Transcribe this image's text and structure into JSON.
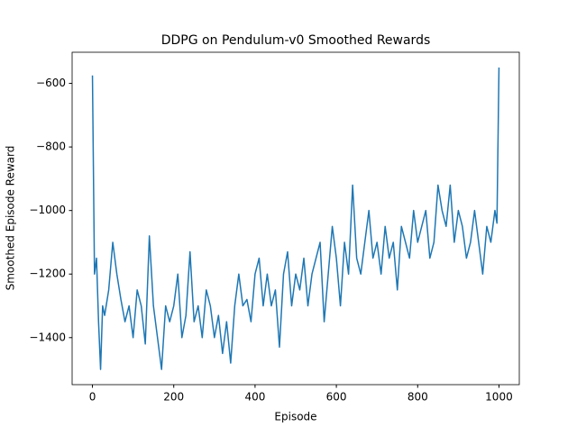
{
  "chart_data": {
    "type": "line",
    "title": "DDPG on Pendulum-v0 Smoothed Rewards",
    "x_label": "Episode",
    "y_label": "Smoothed Episode Reward",
    "series": [
      {
        "color": "#1f77b4",
        "x": [
          0,
          5,
          10,
          15,
          20,
          25,
          30,
          40,
          50,
          60,
          70,
          80,
          90,
          100,
          110,
          120,
          130,
          140,
          150,
          160,
          170,
          180,
          190,
          200,
          210,
          220,
          230,
          240,
          250,
          260,
          270,
          280,
          290,
          300,
          310,
          320,
          330,
          340,
          350,
          360,
          370,
          380,
          390,
          400,
          410,
          420,
          430,
          440,
          450,
          460,
          470,
          480,
          490,
          500,
          510,
          520,
          530,
          540,
          550,
          560,
          570,
          580,
          590,
          600,
          610,
          620,
          630,
          640,
          650,
          660,
          670,
          680,
          690,
          700,
          710,
          720,
          730,
          740,
          750,
          760,
          770,
          780,
          790,
          800,
          810,
          820,
          830,
          840,
          850,
          860,
          870,
          880,
          890,
          900,
          910,
          920,
          930,
          940,
          950,
          960,
          970,
          980,
          990,
          995,
          1000
        ],
        "values": [
          -575,
          -1200,
          -1150,
          -1350,
          -1500,
          -1300,
          -1330,
          -1250,
          -1100,
          -1200,
          -1280,
          -1350,
          -1300,
          -1400,
          -1250,
          -1300,
          -1420,
          -1080,
          -1300,
          -1400,
          -1500,
          -1300,
          -1350,
          -1300,
          -1200,
          -1400,
          -1330,
          -1130,
          -1350,
          -1300,
          -1400,
          -1250,
          -1300,
          -1400,
          -1330,
          -1450,
          -1350,
          -1480,
          -1300,
          -1200,
          -1300,
          -1280,
          -1350,
          -1200,
          -1150,
          -1300,
          -1200,
          -1300,
          -1250,
          -1430,
          -1200,
          -1130,
          -1300,
          -1200,
          -1250,
          -1150,
          -1300,
          -1200,
          -1150,
          -1100,
          -1350,
          -1200,
          -1050,
          -1150,
          -1300,
          -1100,
          -1200,
          -920,
          -1150,
          -1200,
          -1100,
          -1000,
          -1150,
          -1100,
          -1200,
          -1050,
          -1150,
          -1100,
          -1250,
          -1050,
          -1100,
          -1150,
          -1000,
          -1100,
          -1050,
          -1000,
          -1150,
          -1100,
          -920,
          -1000,
          -1050,
          -920,
          -1100,
          -1000,
          -1050,
          -1150,
          -1100,
          -1000,
          -1100,
          -1200,
          -1050,
          -1100,
          -1000,
          -1040,
          -550
        ]
      }
    ],
    "xlim": [
      -50,
      1050
    ],
    "ylim": [
      -1548,
      -502
    ],
    "xticks": [
      0,
      200,
      400,
      600,
      800,
      1000
    ],
    "yticks": [
      {
        "value": -1400,
        "label": "−1400"
      },
      {
        "value": -1200,
        "label": "−1200"
      },
      {
        "value": -1000,
        "label": "−1000"
      },
      {
        "value": -800,
        "label": "−800"
      },
      {
        "value": -600,
        "label": "−600"
      }
    ],
    "grid": false
  }
}
